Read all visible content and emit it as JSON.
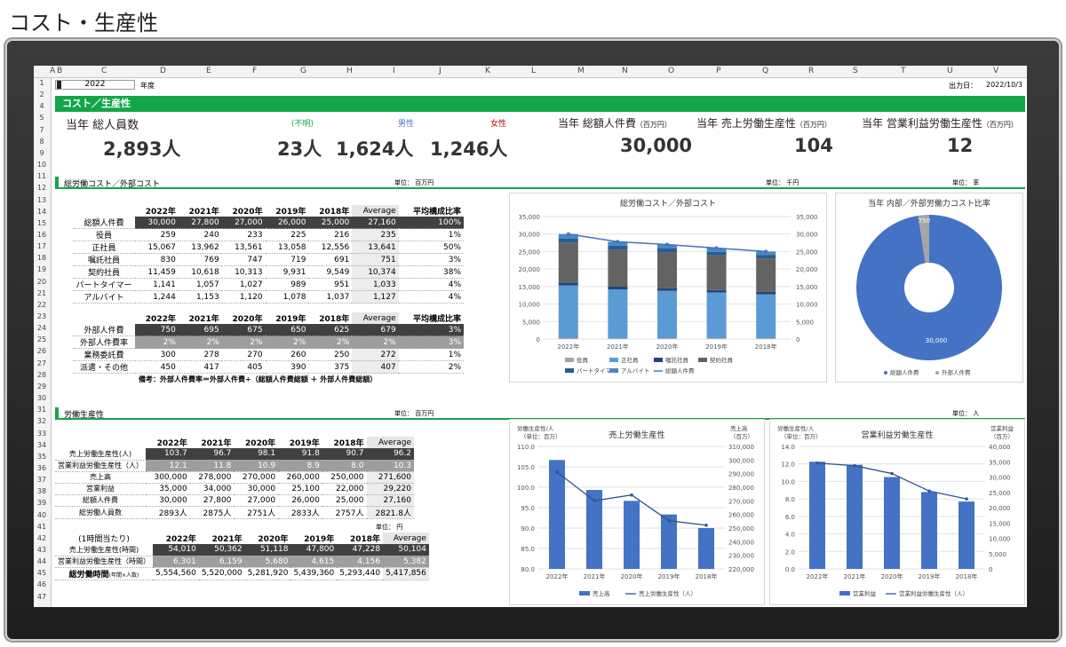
{
  "page_title": "コスト・生産性",
  "sheet": {
    "columns": [
      "A",
      "B",
      "C",
      "D",
      "E",
      "F",
      "G",
      "H",
      "I",
      "J",
      "K",
      "L",
      "M",
      "N",
      "O",
      "P",
      "Q",
      "R",
      "S",
      "T",
      "U",
      "V"
    ],
    "rows": [
      "1",
      "2",
      "4",
      "5",
      "7",
      "8",
      "9",
      "10",
      "11",
      "12",
      "13",
      "14",
      "15",
      "16",
      "17",
      "18",
      "19",
      "20",
      "21",
      "22",
      "23",
      "24",
      "25",
      "26",
      "27",
      "28",
      "29",
      "30",
      "31",
      "32",
      "33",
      "34",
      "35",
      "36",
      "37",
      "38",
      "39",
      "40",
      "41",
      "42",
      "43",
      "44",
      "45",
      "46",
      "47"
    ],
    "year_value": "2022",
    "year_label": "年度",
    "output_label": "出力日：",
    "output_date": "2022/10/3"
  },
  "banner": "コスト／生産性",
  "kpi": {
    "headcount_label": "当年 総人員数",
    "unknown_label": "(不明)",
    "male_label": "男性",
    "female_label": "女性",
    "headcount": "2,893人",
    "unknown": "23人",
    "male": "1,624人",
    "female": "1,246人",
    "labor_cost_label": "当年 総額人件費",
    "labor_cost_unit": "（百万円）",
    "labor_cost": "30,000",
    "sales_prod_label": "当年 売上労働生産性",
    "sales_prod_unit": "（百万円）",
    "sales_prod": "104",
    "op_prod_label": "当年 営業利益労働生産性",
    "op_prod_unit": "（百万円）",
    "op_prod": "12"
  },
  "section1": {
    "title": "総労働コスト／外部コスト",
    "unit1": "単位： 百万円",
    "unit2": "単位： 千円",
    "unit3": "単位： 率"
  },
  "table1": {
    "headers": [
      "2022年",
      "2021年",
      "2020年",
      "2019年",
      "2018年",
      "Average",
      "平均構成比率"
    ],
    "rows": [
      {
        "label": "総額人件費",
        "values": [
          "30,000",
          "27,800",
          "27,000",
          "26,000",
          "25,000",
          "27,160",
          "100%"
        ]
      },
      {
        "label": "役員",
        "values": [
          "259",
          "240",
          "233",
          "225",
          "216",
          "235",
          "1%"
        ]
      },
      {
        "label": "正社員",
        "values": [
          "15,067",
          "13,962",
          "13,561",
          "13,058",
          "12,556",
          "13,641",
          "50%"
        ]
      },
      {
        "label": "嘱託社員",
        "values": [
          "830",
          "769",
          "747",
          "719",
          "691",
          "751",
          "3%"
        ]
      },
      {
        "label": "契約社員",
        "values": [
          "11,459",
          "10,618",
          "10,313",
          "9,931",
          "9,549",
          "10,374",
          "38%"
        ]
      },
      {
        "label": "パートタイマー",
        "values": [
          "1,141",
          "1,057",
          "1,027",
          "989",
          "951",
          "1,033",
          "4%"
        ]
      },
      {
        "label": "アルバイト",
        "values": [
          "1,244",
          "1,153",
          "1,120",
          "1,078",
          "1,037",
          "1,127",
          "4%"
        ]
      }
    ]
  },
  "table2": {
    "headers": [
      "2022年",
      "2021年",
      "2020年",
      "2019年",
      "2018年",
      "Average",
      "平均構成比率"
    ],
    "rows": [
      {
        "label": "外部人件費",
        "values": [
          "750",
          "695",
          "675",
          "650",
          "625",
          "679",
          "3%"
        ]
      },
      {
        "label": "外部人件費率",
        "values": [
          "2%",
          "2%",
          "2%",
          "2%",
          "2%",
          "2%",
          "3%"
        ]
      },
      {
        "label": "業務委託費",
        "values": [
          "300",
          "278",
          "270",
          "260",
          "250",
          "272",
          "1%"
        ]
      },
      {
        "label": "派遣・その他",
        "values": [
          "450",
          "417",
          "405",
          "390",
          "375",
          "407",
          "2%"
        ]
      }
    ],
    "note": "備考：外部人件費率＝外部人件費÷（総額人件費総額 ＋ 外部人件費総額）"
  },
  "section2": {
    "title": "労働生産性",
    "unit1": "単位： 百万円",
    "unit2": "単位： 人",
    "unit3": "単位： 円"
  },
  "table3": {
    "headers": [
      "2022年",
      "2021年",
      "2020年",
      "2019年",
      "2018年",
      "Average"
    ],
    "rows": [
      {
        "label": "売上労働生産性(人)",
        "values": [
          "103.7",
          "96.7",
          "98.1",
          "91.8",
          "90.7",
          "96.2"
        ]
      },
      {
        "label": "営業利益労働生産性（人）",
        "values": [
          "12.1",
          "11.8",
          "10.9",
          "8.9",
          "8.0",
          "10.3"
        ]
      },
      {
        "label": "売上高",
        "values": [
          "300,000",
          "278,000",
          "270,000",
          "260,000",
          "250,000",
          "271,600"
        ]
      },
      {
        "label": "営業利益",
        "values": [
          "35,000",
          "34,000",
          "30,000",
          "25,100",
          "22,000",
          "29,220"
        ]
      },
      {
        "label": "総額人件費",
        "values": [
          "30,000",
          "27,800",
          "27,000",
          "26,000",
          "25,000",
          "27,160"
        ]
      },
      {
        "label": "総労働人員数",
        "values": [
          "2893人",
          "2875人",
          "2751人",
          "2833人",
          "2757人",
          "2821.8人"
        ]
      }
    ]
  },
  "table4": {
    "caption": "(1時間当たり)",
    "headers": [
      "2022年",
      "2021年",
      "2020年",
      "2019年",
      "2018年",
      "Average"
    ],
    "rows": [
      {
        "label": "売上労働生産性(時間)",
        "values": [
          "54,010",
          "50,362",
          "51,118",
          "47,800",
          "47,228",
          "50,104"
        ]
      },
      {
        "label": "営業利益労働生産性（時間）",
        "values": [
          "6,301",
          "6,159",
          "5,680",
          "4,615",
          "4,156",
          "5,382"
        ]
      }
    ],
    "hours_label": "総労働時間",
    "hours_sub": "(年間×人数)",
    "hours_values": [
      "5,554,560",
      "5,520,000",
      "5,281,920",
      "5,439,360",
      "5,293,440",
      "5,417,856"
    ]
  },
  "chart_data": [
    {
      "type": "bar",
      "title": "総労働コスト／外部コスト",
      "categories": [
        "2022年",
        "2021年",
        "2020年",
        "2019年",
        "2018年"
      ],
      "ylim": [
        0,
        35000
      ],
      "yticks": [
        "35,000",
        "30,000",
        "25,000",
        "20,000",
        "15,000",
        "10,000",
        "5,000",
        "0"
      ],
      "stacked": true,
      "series": [
        {
          "name": "役員",
          "values": [
            259,
            240,
            233,
            225,
            216
          ],
          "color": "#a5a5a5"
        },
        {
          "name": "正社員",
          "values": [
            15067,
            13962,
            13561,
            13058,
            12556
          ],
          "color": "#5b9bd5"
        },
        {
          "name": "嘱託社員",
          "values": [
            830,
            769,
            747,
            719,
            691
          ],
          "color": "#264478"
        },
        {
          "name": "契約社員",
          "values": [
            11459,
            10618,
            10313,
            9931,
            9549
          ],
          "color": "#636363"
        },
        {
          "name": "パートタイマー",
          "values": [
            1141,
            1057,
            1027,
            989,
            951
          ],
          "color": "#255e91"
        },
        {
          "name": "アルバイト",
          "values": [
            1244,
            1153,
            1120,
            1078,
            1037
          ],
          "color": "#4a87c4"
        }
      ],
      "line": {
        "name": "総額人件費",
        "values": [
          30000,
          27800,
          27000,
          26000,
          25000
        ],
        "color": "#4472c4"
      }
    },
    {
      "type": "pie",
      "title": "当年 内部／外部労働力コスト比率",
      "slices": [
        {
          "name": "総額人件費",
          "value": 30000,
          "label": "30,000",
          "color": "#4472c4"
        },
        {
          "name": "外部人件費",
          "value": 750,
          "label": "750",
          "color": "#a5a5a5"
        }
      ]
    },
    {
      "type": "bar",
      "title": "売上労働生産性",
      "ylabel_left": "労働生産性/人",
      "ylabel_left2": "（単位：百万）",
      "ylabel_right": "売上高",
      "ylabel_right2": "（百万）",
      "categories": [
        "2022年",
        "2021年",
        "2020年",
        "2019年",
        "2018年"
      ],
      "ylim_left": [
        80,
        110
      ],
      "yticks_left": [
        "110.0",
        "105.0",
        "100.0",
        "95.0",
        "90.0",
        "85.0",
        "80.0"
      ],
      "ylim_right": [
        220000,
        310000
      ],
      "yticks_right": [
        "310,000",
        "300,000",
        "290,000",
        "280,000",
        "270,000",
        "260,000",
        "250,000",
        "240,000",
        "230,000",
        "220,000"
      ],
      "bars": {
        "name": "売上高",
        "values": [
          300000,
          278000,
          270000,
          260000,
          250000
        ],
        "color": "#4472c4"
      },
      "line": {
        "name": "売上労働生産性（人）",
        "values": [
          103.7,
          96.7,
          98.1,
          91.8,
          90.7
        ],
        "color": "#2f5597"
      }
    },
    {
      "type": "bar",
      "title": "営業利益労働生産性",
      "ylabel_left": "労働生産性/人",
      "ylabel_left2": "（単位：百万）",
      "ylabel_right": "営業利益",
      "ylabel_right2": "（百万）",
      "categories": [
        "2022年",
        "2021年",
        "2020年",
        "2019年",
        "2018年"
      ],
      "ylim_left": [
        0,
        14
      ],
      "yticks_left": [
        "14.0",
        "12.0",
        "10.0",
        "8.0",
        "6.0",
        "4.0",
        "2.0",
        "0.0"
      ],
      "ylim_right": [
        0,
        40000
      ],
      "yticks_right": [
        "40,000",
        "35,000",
        "30,000",
        "25,000",
        "20,000",
        "15,000",
        "10,000",
        "5,000",
        "0"
      ],
      "bars": {
        "name": "営業利益",
        "values": [
          35000,
          34000,
          30000,
          25100,
          22000
        ],
        "color": "#4472c4"
      },
      "line": {
        "name": "営業利益労働生産性（人）",
        "values": [
          12.1,
          11.8,
          10.9,
          8.9,
          8.0
        ],
        "color": "#2f5597"
      }
    }
  ]
}
